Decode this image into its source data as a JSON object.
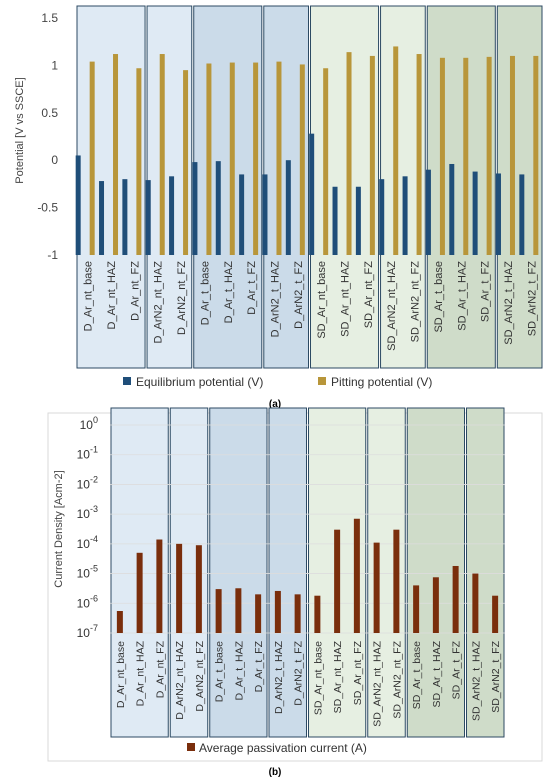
{
  "colors": {
    "equilibrium": "#1f4e79",
    "pitting": "#b8963a",
    "passivation": "#7a2e0c",
    "box_stroke": "#2c4a63",
    "shade_light_blue": "#dfeaf4",
    "shade_mid_blue": "#cbdbe9",
    "shade_light_green": "#e6efe2",
    "shade_mid_green": "#cfdcc9",
    "gridline": "#dddddd"
  },
  "panel_labels": [
    "(a)",
    "(b)"
  ],
  "chart_data": [
    {
      "type": "bar",
      "title": "",
      "xlabel": "",
      "ylabel": "Potential [V vs SSCE]",
      "ylim": [
        -1,
        1.5
      ],
      "yticks": [
        "-1",
        "-0.5",
        "0",
        "0.5",
        "1",
        "1.5"
      ],
      "grid": false,
      "legend_position": "bottom",
      "categories": [
        "D_Ar_nt_base",
        "D_Ar_nt_HAZ",
        "D_Ar_nt_FZ",
        "D_ArN2_nt_HAZ",
        "D_ArN2_nt_FZ",
        "D_Ar_t_base",
        "D_Ar_t_HAZ",
        "D_Ar_t_FZ",
        "D_ArN2_t_HAZ",
        "D_ArN2_t_FZ",
        "SD_Ar_nt_base",
        "SD_Ar_nt_HAZ",
        "SD_Ar_nt_FZ",
        "SD_ArN2_nt_HAZ",
        "SD_ArN2_nt_FZ",
        "SD_Ar_t_base",
        "SD_Ar_t_HAZ",
        "SD_Ar_t_FZ",
        "SD_ArN2_t_HAZ",
        "SD_ArN2_t_FZ"
      ],
      "series": [
        {
          "name": "Equilibrium potential (V)",
          "values": [
            0.05,
            -0.22,
            -0.2,
            -0.21,
            -0.17,
            -0.02,
            -0.01,
            -0.15,
            -0.15,
            0.0,
            0.28,
            -0.28,
            -0.28,
            -0.2,
            -0.17,
            -0.1,
            -0.04,
            -0.12,
            -0.14,
            -0.15
          ]
        },
        {
          "name": "Pitting potential (V)",
          "values": [
            1.04,
            1.12,
            0.97,
            1.12,
            0.95,
            1.02,
            1.03,
            1.03,
            1.04,
            1.01,
            0.97,
            1.14,
            1.1,
            1.2,
            1.12,
            1.08,
            1.08,
            1.09,
            1.1,
            1.1
          ]
        }
      ]
    },
    {
      "type": "bar",
      "title": "",
      "xlabel": "",
      "ylabel": "Current Density [Acm-2]",
      "yscale": "log",
      "ylim": [
        1e-07,
        1
      ],
      "yticks": [
        {
          "base": "10",
          "exp": "-7"
        },
        {
          "base": "10",
          "exp": "-6"
        },
        {
          "base": "10",
          "exp": "-5"
        },
        {
          "base": "10",
          "exp": "-4"
        },
        {
          "base": "10",
          "exp": "-3"
        },
        {
          "base": "10",
          "exp": "-2"
        },
        {
          "base": "10",
          "exp": "-1"
        },
        {
          "base": "10",
          "exp": "0"
        }
      ],
      "grid": true,
      "legend_position": "bottom",
      "categories": [
        "D_Ar_nt_base",
        "D_Ar_nt_HAZ",
        "D_Ar_nt_FZ",
        "D_ArN2_nt_HAZ",
        "D_ArN2_nt_FZ",
        "D_Ar_t_base",
        "D_Ar_t_HAZ",
        "D_Ar_t_FZ",
        "D_ArN2_t_HAZ",
        "D_ArN2_t_FZ",
        "SD_Ar_nt_base",
        "SD_Ar_nt_HAZ",
        "SD_Ar_nt_FZ",
        "SD_ArN2_nt_HAZ",
        "SD_ArN2_nt_FZ",
        "SD_Ar_t_base",
        "SD_Ar_t_HAZ",
        "SD_Ar_t_FZ",
        "SD_ArN2_t_HAZ",
        "SD_ArN2_t_FZ"
      ],
      "series": [
        {
          "name": "Average passivation current (A)",
          "values": [
            5.5e-07,
            5e-05,
            0.00014,
            0.0001,
            9e-05,
            3e-06,
            3.2e-06,
            2e-06,
            2.6e-06,
            2e-06,
            1.8e-06,
            0.0003,
            0.0007,
            0.00011,
            0.0003,
            4e-06,
            7.5e-06,
            1.8e-05,
            1e-05,
            1.8e-06
          ]
        }
      ]
    }
  ]
}
